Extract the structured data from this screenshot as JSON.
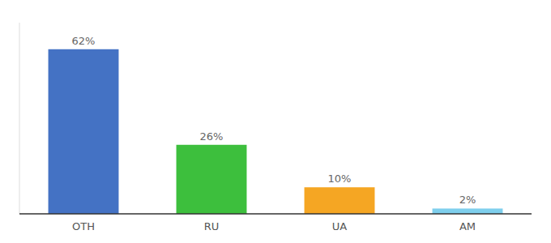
{
  "chart_data": {
    "type": "bar",
    "categories": [
      "OTH",
      "RU",
      "UA",
      "AM"
    ],
    "values": [
      62,
      26,
      10,
      2
    ],
    "value_labels": [
      "62%",
      "26%",
      "10%",
      "2%"
    ],
    "colors": [
      "#4472c4",
      "#3dbf3d",
      "#f5a623",
      "#7ecfed"
    ],
    "ylim": [
      0,
      72
    ],
    "data_labels": true,
    "tick_labels": "x",
    "grid": false
  }
}
